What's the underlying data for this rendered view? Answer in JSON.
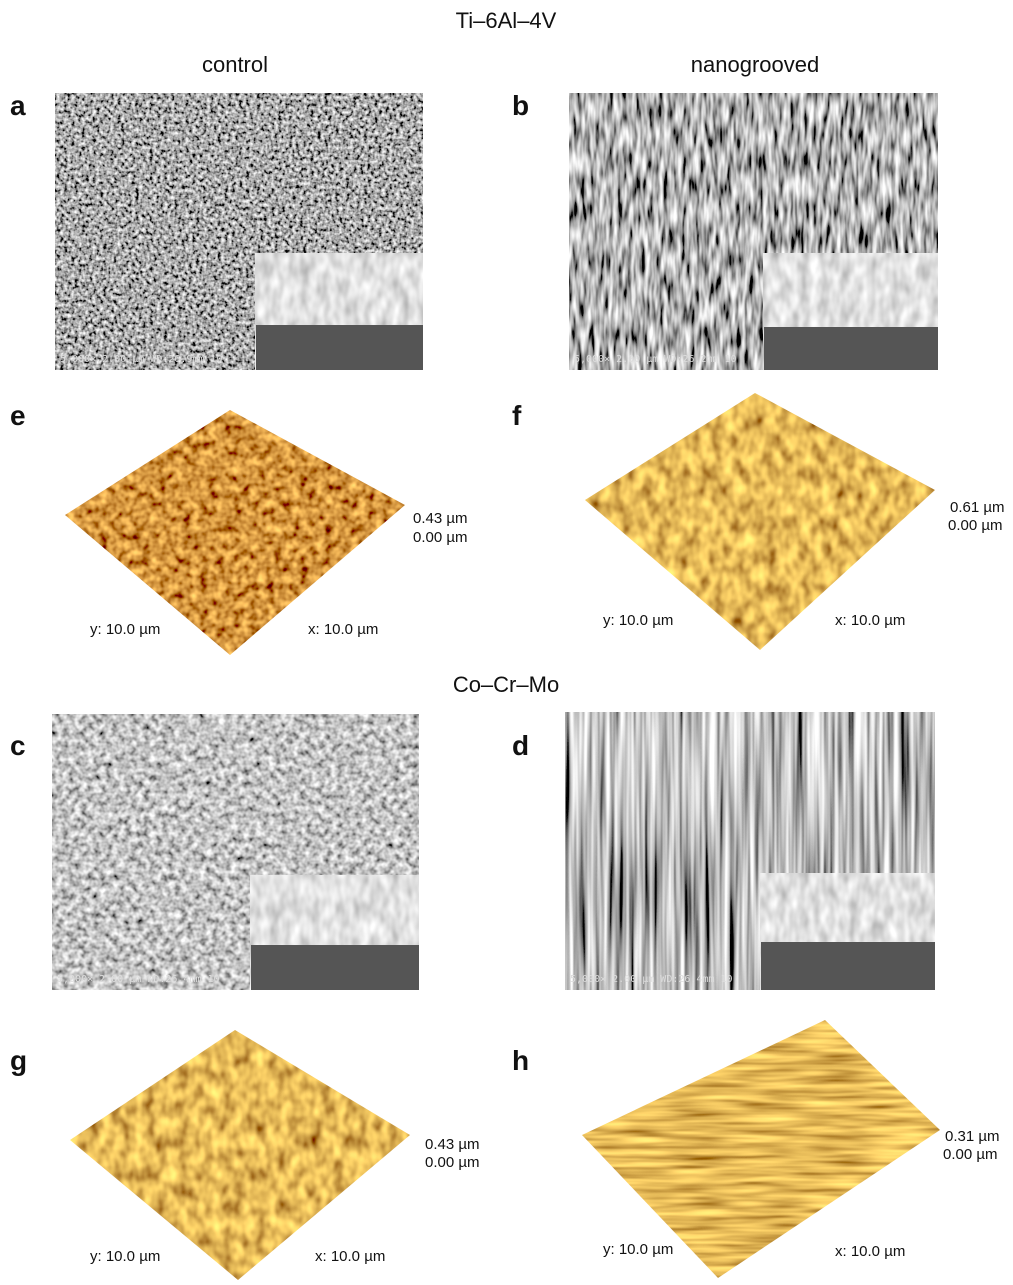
{
  "column_headers": [
    "control",
    "nanogrooved"
  ],
  "sections": [
    {
      "title": "Ti–6Al–4V",
      "sem": [
        {
          "label": "a",
          "info": "5,000× 2.00 μm WD:26.9mm 10"
        },
        {
          "label": "b",
          "info": "5,000× 2.00 μm WD:26.2mm 10"
        }
      ],
      "afm": [
        {
          "label": "e",
          "z_max": "0.43 µm",
          "z_min": "0.00 µm",
          "y_axis": "y: 10.0 µm",
          "x_axis": "x: 10.0 µm"
        },
        {
          "label": "f",
          "z_max": "0.61 µm",
          "z_min": "0.00 µm",
          "y_axis": "y: 10.0 µm",
          "x_axis": "x: 10.0 µm"
        }
      ]
    },
    {
      "title": "Co–Cr–Mo",
      "sem": [
        {
          "label": "c",
          "info": "5,000× 2.00 μm WD:26.4mm 10"
        },
        {
          "label": "d",
          "info": "5,000× 2.00 μm WD:26.4mm 10"
        }
      ],
      "afm": [
        {
          "label": "g",
          "z_max": "0.43 µm",
          "z_min": "0.00 µm",
          "y_axis": "y: 10.0 µm",
          "x_axis": "x: 10.0 µm"
        },
        {
          "label": "h",
          "z_max": "0.31 µm",
          "z_min": "0.00 µm",
          "y_axis": "y: 10.0 µm",
          "x_axis": "x: 10.0 µm"
        }
      ]
    }
  ]
}
